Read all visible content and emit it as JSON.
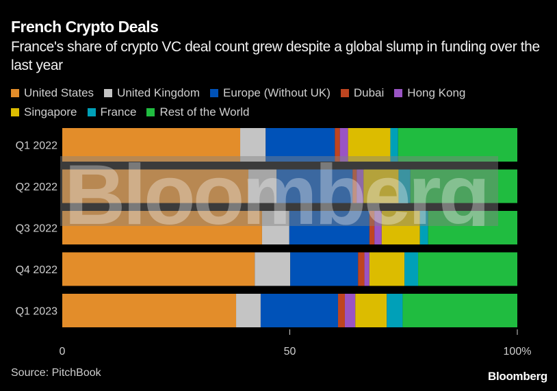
{
  "header": {
    "title": "French Crypto Deals",
    "subtitle": "France's share of crypto VC deal count grew despite a global slump in funding over the last year"
  },
  "legend": [
    {
      "label": "United States",
      "color": "#e38d2a"
    },
    {
      "label": "United Kingdom",
      "color": "#c4c4c4"
    },
    {
      "label": "Europe (Without UK)",
      "color": "#0052b8"
    },
    {
      "label": "Dubai",
      "color": "#bf4520"
    },
    {
      "label": "Hong Kong",
      "color": "#9a54c4"
    },
    {
      "label": "Singapore",
      "color": "#dcbc00"
    },
    {
      "label": "France",
      "color": "#00a0b8"
    },
    {
      "label": "Rest of the World",
      "color": "#20bc40"
    }
  ],
  "footer": {
    "source": "Source: PitchBook",
    "brand": "Bloomberg"
  },
  "watermark": "Bloomberg",
  "chart_data": {
    "type": "bar",
    "orientation": "horizontal",
    "stacked": true,
    "title": "French Crypto Deals",
    "subtitle": "France's share of crypto VC deal count grew despite a global slump in funding over the last year",
    "xlabel": "",
    "ylabel": "",
    "xlim": [
      0,
      100
    ],
    "x_ticks": [
      0,
      50,
      100
    ],
    "x_tick_labels": [
      "0",
      "50",
      "100%"
    ],
    "grid": false,
    "legend_position": "top",
    "categories": [
      "Q1 2022",
      "Q2 2022",
      "Q3 2022",
      "Q4 2022",
      "Q1 2023"
    ],
    "series": [
      {
        "name": "United States",
        "color": "#e38d2a",
        "values": [
          39.1,
          40.9,
          43.9,
          42.3,
          38.2
        ]
      },
      {
        "name": "United Kingdom",
        "color": "#c4c4c4",
        "values": [
          5.6,
          6.2,
          6.0,
          7.8,
          5.4
        ]
      },
      {
        "name": "Europe (Without UK)",
        "color": "#0052b8",
        "values": [
          15.2,
          16.7,
          17.6,
          14.9,
          17.0
        ]
      },
      {
        "name": "Dubai",
        "color": "#bf4520",
        "values": [
          1.1,
          0.9,
          1.1,
          1.4,
          1.5
        ]
      },
      {
        "name": "Hong Kong",
        "color": "#9a54c4",
        "values": [
          1.8,
          1.5,
          1.6,
          1.1,
          2.3
        ]
      },
      {
        "name": "Singapore",
        "color": "#dcbc00",
        "values": [
          9.3,
          7.7,
          8.4,
          7.7,
          6.9
        ]
      },
      {
        "name": "France",
        "color": "#00a0b8",
        "values": [
          1.7,
          2.6,
          1.8,
          3.0,
          3.5
        ]
      },
      {
        "name": "Rest of the World",
        "color": "#20bc40",
        "values": [
          26.2,
          23.5,
          19.6,
          21.8,
          25.2
        ]
      }
    ]
  }
}
